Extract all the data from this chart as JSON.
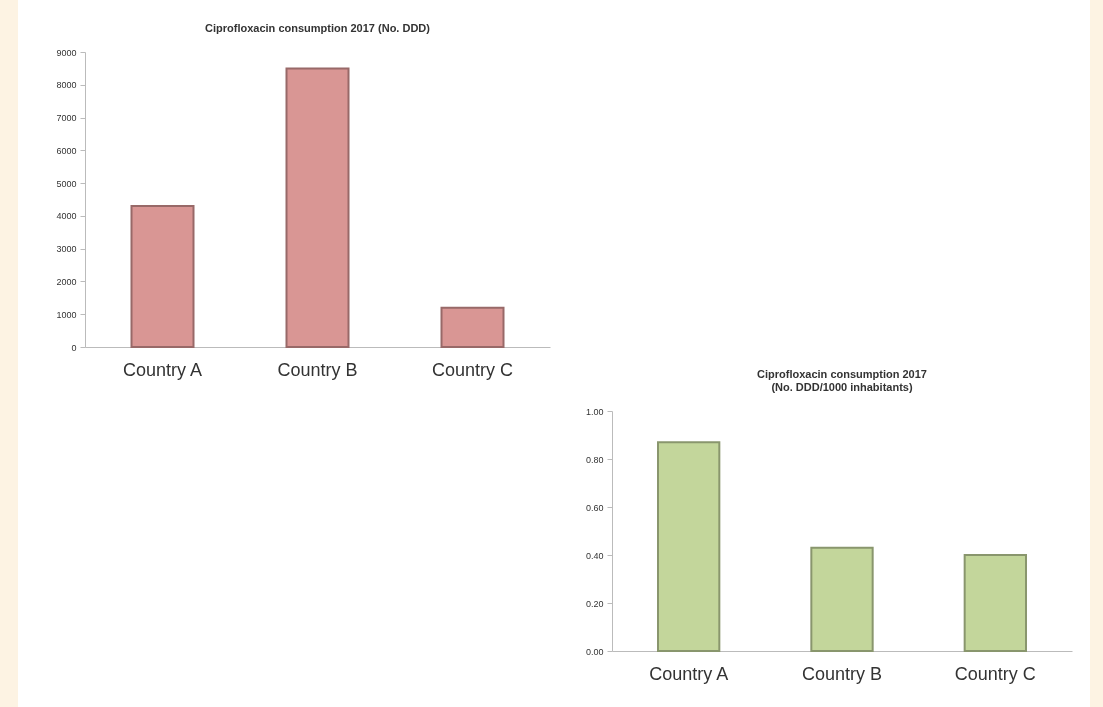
{
  "chart_data": [
    {
      "type": "bar",
      "title": "Ciprofloxacin consumption 2017 (No. DDD)",
      "categories": [
        "Country A",
        "Country B",
        "Country C"
      ],
      "values": [
        4300,
        8500,
        1200
      ],
      "color": "#d99694",
      "ylim": [
        0,
        9000
      ],
      "yticks": [
        0,
        1000,
        2000,
        3000,
        4000,
        5000,
        6000,
        7000,
        8000,
        9000
      ],
      "grid": false
    },
    {
      "type": "bar",
      "title": "Ciprofloxacin consumption 2017",
      "subtitle": "(No. DDD/1000 inhabitants)",
      "categories": [
        "Country A",
        "Country B",
        "Country C"
      ],
      "values": [
        0.87,
        0.43,
        0.4
      ],
      "color": "#c3d69b",
      "ylim": [
        0,
        1
      ],
      "yticks": [
        {
          "value": 0,
          "label": "0.00"
        },
        {
          "value": 0.2,
          "label": "0.20"
        },
        {
          "value": 0.4,
          "label": "0.40"
        },
        {
          "value": 0.6,
          "label": "0.60"
        },
        {
          "value": 0.8,
          "label": "0.80"
        },
        {
          "value": 1,
          "label": "1.00"
        }
      ],
      "grid": false
    }
  ]
}
